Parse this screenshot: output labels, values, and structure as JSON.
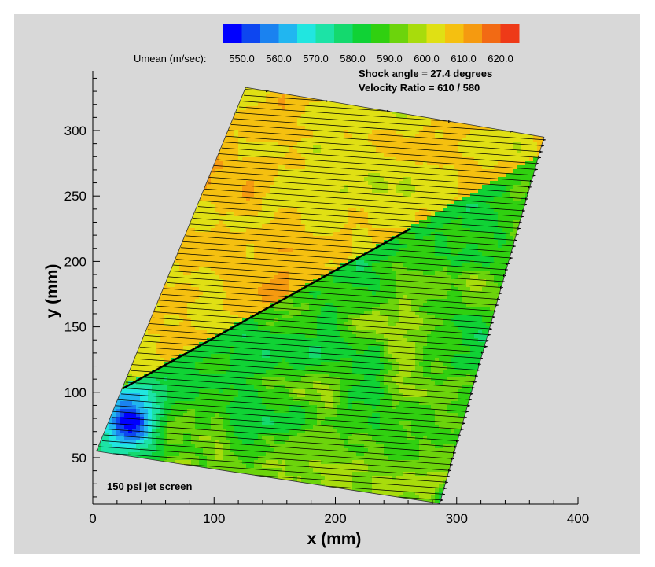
{
  "chart_data": {
    "type": "heatmap",
    "xlabel": "x (mm)",
    "ylabel": "y (mm)",
    "xlim": [
      0,
      400
    ],
    "ylim": [
      15,
      335
    ],
    "x_ticks": [
      "0",
      "100",
      "200",
      "300",
      "400"
    ],
    "y_ticks": [
      "50",
      "100",
      "150",
      "200",
      "250",
      "300"
    ],
    "colorbar": {
      "title": "Umean (m/sec):",
      "levels": [
        545,
        550,
        555,
        560,
        565,
        570,
        575,
        580,
        585,
        590,
        595,
        600,
        605,
        610,
        615,
        620,
        625
      ],
      "tick_labels": [
        "550.0",
        "560.0",
        "570.0",
        "580.0",
        "590.0",
        "600.0",
        "610.0",
        "620.0"
      ],
      "colors": [
        "#0000ff",
        "#0d46f0",
        "#1a82f0",
        "#21b6f0",
        "#21e6e0",
        "#1ce3a6",
        "#14d96e",
        "#10d235",
        "#30d010",
        "#6cd40c",
        "#a8dc0c",
        "#e0e014",
        "#f5c010",
        "#f59a10",
        "#f26a14",
        "#ee3a18"
      ]
    },
    "domain_corners_mm": [
      [
        3,
        55
      ],
      [
        126,
        333
      ],
      [
        372,
        295
      ],
      [
        286,
        15
      ]
    ],
    "shock_line": {
      "x": [
        25,
        262
      ],
      "y": [
        103,
        225
      ]
    },
    "annotations": {
      "shock_angle": "Shock angle = 27.4 degrees",
      "velocity_ratio": "Velocity Ratio = 610 / 580",
      "caption": "150 psi jet screen"
    }
  }
}
